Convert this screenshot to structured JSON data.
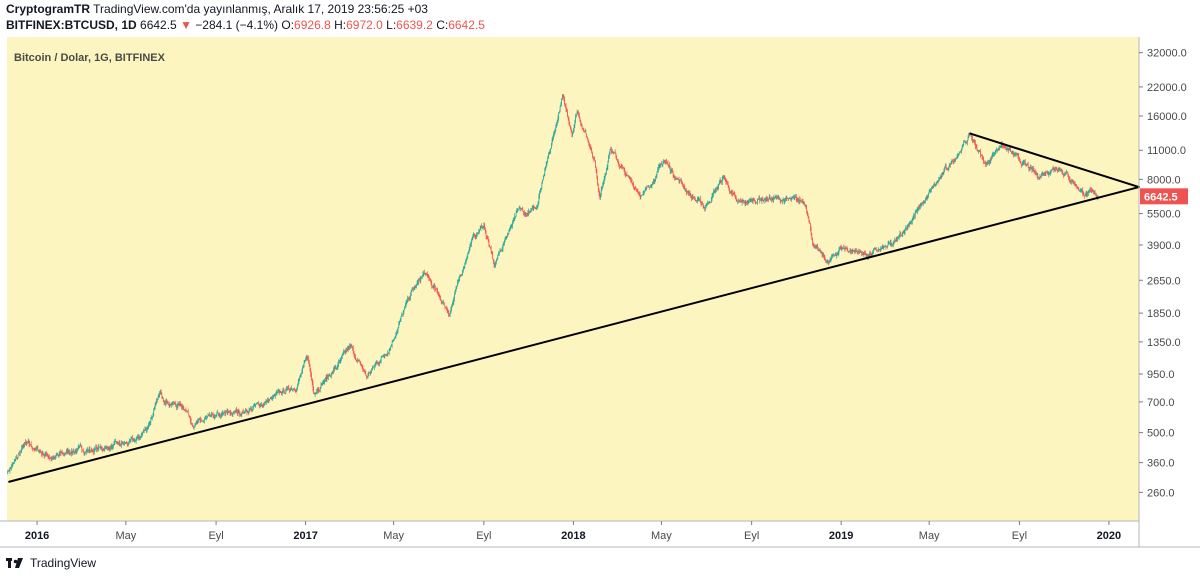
{
  "header": {
    "publisher": "CryptogramTR",
    "published_line": "TradingView.com'da yayınlanmış, Aralık 17, 2019 23:56:25 +03",
    "symbol": "BITFINEX:BTCUSD, 1D",
    "last_price": "6642.5",
    "change_arrow": "▼",
    "change": "−284.1 (−4.1%)",
    "open_label": "O:",
    "open": "6926.8",
    "high_label": "H:",
    "high": "6972.0",
    "low_label": "L:",
    "low": "6639.2",
    "close_label": "C:",
    "close": "6642.5"
  },
  "plot_title": "Bitcoin / Dolar, 1G, BITFINEX",
  "footer": {
    "brand": "TradingView"
  },
  "colors": {
    "background": "#fdf5bf",
    "up": "#26a69a",
    "down": "#ef5350",
    "line": "#000000",
    "price_tag": "#ef5350"
  },
  "chart_data": {
    "type": "candlestick",
    "title": "Bitcoin / Dolar, 1G, BITFINEX",
    "y_scale": "log",
    "ylim": [
      190,
      38000
    ],
    "xlim": [
      "2015-11-21",
      "2020-02-11"
    ],
    "y_ticks": [
      32000,
      22000,
      16000,
      11000,
      8000,
      5500,
      3900,
      2650,
      1850,
      1350,
      950,
      700,
      500,
      360,
      260
    ],
    "y_tick_labels": [
      "32000.0",
      "22000.0",
      "16000.0",
      "11000.0",
      "8000.0",
      "5500.0",
      "3900.0",
      "2650.0",
      "1850.0",
      "1350.0",
      "950.0",
      "700.0",
      "500.0",
      "360.0",
      "260.0"
    ],
    "x_ticks": [
      {
        "date": "2016-01-01",
        "label": "2016",
        "year": true
      },
      {
        "date": "2016-05-01",
        "label": "May",
        "year": false
      },
      {
        "date": "2016-09-01",
        "label": "Eyl",
        "year": false
      },
      {
        "date": "2017-01-01",
        "label": "2017",
        "year": true
      },
      {
        "date": "2017-05-01",
        "label": "May",
        "year": false
      },
      {
        "date": "2017-09-01",
        "label": "Eyl",
        "year": false
      },
      {
        "date": "2018-01-01",
        "label": "2018",
        "year": true
      },
      {
        "date": "2018-05-01",
        "label": "May",
        "year": false
      },
      {
        "date": "2018-09-01",
        "label": "Eyl",
        "year": false
      },
      {
        "date": "2019-01-01",
        "label": "2019",
        "year": true
      },
      {
        "date": "2019-05-01",
        "label": "May",
        "year": false
      },
      {
        "date": "2019-09-01",
        "label": "Eyl",
        "year": false
      },
      {
        "date": "2020-01-01",
        "label": "2020",
        "year": true
      }
    ],
    "price_path": [
      [
        "2015-11-21",
        325
      ],
      [
        "2015-12-01",
        360
      ],
      [
        "2015-12-15",
        440
      ],
      [
        "2015-12-28",
        420
      ],
      [
        "2016-01-15",
        390
      ],
      [
        "2016-01-25",
        380
      ],
      [
        "2016-02-15",
        410
      ],
      [
        "2016-03-15",
        415
      ],
      [
        "2016-04-15",
        430
      ],
      [
        "2016-05-15",
        455
      ],
      [
        "2016-05-30",
        530
      ],
      [
        "2016-06-17",
        760
      ],
      [
        "2016-07-01",
        690
      ],
      [
        "2016-07-20",
        665
      ],
      [
        "2016-08-02",
        545
      ],
      [
        "2016-08-20",
        575
      ],
      [
        "2016-09-15",
        610
      ],
      [
        "2016-10-15",
        640
      ],
      [
        "2016-11-15",
        720
      ],
      [
        "2016-12-20",
        850
      ],
      [
        "2017-01-04",
        1130
      ],
      [
        "2017-01-12",
        790
      ],
      [
        "2017-02-10",
        1000
      ],
      [
        "2017-03-03",
        1270
      ],
      [
        "2017-03-25",
        920
      ],
      [
        "2017-04-25",
        1270
      ],
      [
        "2017-05-25",
        2300
      ],
      [
        "2017-06-12",
        2850
      ],
      [
        "2017-07-16",
        1850
      ],
      [
        "2017-08-15",
        4100
      ],
      [
        "2017-09-01",
        4850
      ],
      [
        "2017-09-15",
        3100
      ],
      [
        "2017-10-15",
        5600
      ],
      [
        "2017-11-12",
        5900
      ],
      [
        "2017-11-28",
        10000
      ],
      [
        "2017-12-17",
        19500
      ],
      [
        "2017-12-30",
        13500
      ],
      [
        "2018-01-06",
        17000
      ],
      [
        "2018-01-30",
        10000
      ],
      [
        "2018-02-06",
        6500
      ],
      [
        "2018-02-20",
        11300
      ],
      [
        "2018-03-15",
        8200
      ],
      [
        "2018-04-06",
        6700
      ],
      [
        "2018-05-05",
        9800
      ],
      [
        "2018-06-10",
        6700
      ],
      [
        "2018-06-29",
        5900
      ],
      [
        "2018-07-25",
        8200
      ],
      [
        "2018-08-12",
        6100
      ],
      [
        "2018-09-15",
        6500
      ],
      [
        "2018-10-15",
        6400
      ],
      [
        "2018-11-14",
        6200
      ],
      [
        "2018-11-25",
        3800
      ],
      [
        "2018-12-15",
        3200
      ],
      [
        "2019-01-01",
        3800
      ],
      [
        "2019-02-08",
        3500
      ],
      [
        "2019-03-15",
        3950
      ],
      [
        "2019-04-02",
        4900
      ],
      [
        "2019-05-14",
        7900
      ],
      [
        "2019-06-26",
        13000
      ],
      [
        "2019-07-17",
        9400
      ],
      [
        "2019-08-06",
        11800
      ],
      [
        "2019-09-25",
        8300
      ],
      [
        "2019-10-25",
        9300
      ],
      [
        "2019-11-25",
        7000
      ],
      [
        "2019-12-17",
        6642.5
      ]
    ],
    "trendlines": [
      {
        "name": "support",
        "from": [
          "2015-11-24",
          292
        ],
        "to": [
          "2020-02-11",
          7350
        ]
      },
      {
        "name": "resistance",
        "from": [
          "2019-06-26",
          13200
        ],
        "to": [
          "2020-02-11",
          7350
        ]
      }
    ],
    "last_price": 6642.5,
    "last_price_label": "6642.5"
  }
}
